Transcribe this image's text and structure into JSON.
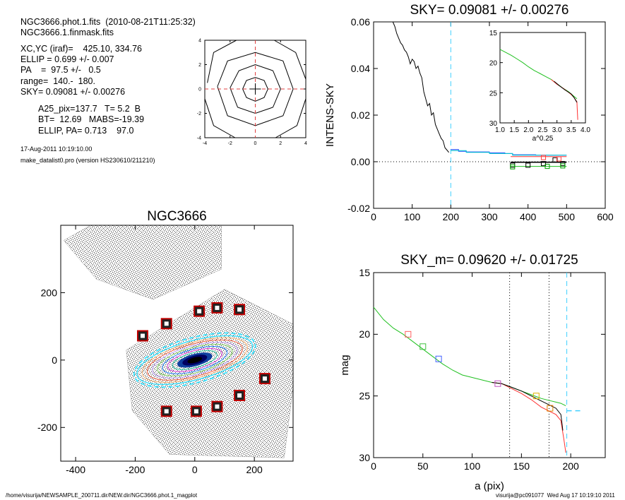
{
  "header": {
    "line1": "NGC3666.phot.1.fits  (2010-08-21T11:25:32)",
    "line2": "NGC3666.1.finmask.fits",
    "xcyc": "XC,YC (iraf)=    425.10, 334.76",
    "ellip": "ELLIP = 0.699 +/- 0.007",
    "pa": "PA    =  97.5 +/-   0.5",
    "range": "range=  140.-  180.",
    "sky": "SKY= 0.09081 +/- 0.00276",
    "a25": "A25_pix=137.7   T= 5.2  B",
    "bt": "BT=  12.69   MABS=-19.39",
    "ellip_pa": "ELLIP, PA= 0.713    97.0",
    "date": "17-Aug-2011 10:19:10.00",
    "prog": "make_datalist0.pro (version HS230610/211210)"
  },
  "footer": {
    "path": "/home/visurija/NEWSAMPLE_200711.dir/NEW.dir/NGC3666.phot.1_magplot",
    "user": "visurija@pc091077  Wed Aug 17 10:19:10 2011"
  },
  "chart_data": [
    {
      "type": "contour",
      "title": "",
      "xlim": [
        -4,
        4
      ],
      "ylim": [
        -4,
        4
      ],
      "xticks": [
        "-4",
        "-2",
        "0",
        "2",
        "4"
      ],
      "yticks": [
        "-4",
        "-2",
        "0",
        "2",
        "4"
      ],
      "contours": [
        {
          "points": [
            [
              -1.0,
              0
            ],
            [
              -0.7,
              0.7
            ],
            [
              0,
              0.95
            ],
            [
              0.7,
              0.7
            ],
            [
              1.0,
              0
            ],
            [
              0.7,
              -0.7
            ],
            [
              0,
              -1.0
            ],
            [
              -0.7,
              -0.7
            ]
          ]
        },
        {
          "points": [
            [
              -2.0,
              0.1
            ],
            [
              -1.3,
              1.5
            ],
            [
              0,
              2.0
            ],
            [
              1.4,
              1.5
            ],
            [
              2.0,
              0
            ],
            [
              1.4,
              -1.5
            ],
            [
              0,
              -2.0
            ],
            [
              -1.4,
              -1.5
            ]
          ]
        },
        {
          "points": [
            [
              -3.0,
              0.2
            ],
            [
              -2.2,
              2.3
            ],
            [
              0,
              3.0
            ],
            [
              2.2,
              2.3
            ],
            [
              3.0,
              0
            ],
            [
              2.2,
              -2.2
            ],
            [
              0,
              -3.0
            ],
            [
              -2.2,
              -2.2
            ]
          ]
        },
        {
          "points": [
            [
              -3.8,
              0.5
            ],
            [
              -3.3,
              3.0
            ],
            [
              -1.5,
              4.0
            ]
          ]
        },
        {
          "points": [
            [
              1.5,
              4.0
            ],
            [
              3.2,
              3.0
            ],
            [
              4.0,
              0.8
            ]
          ]
        },
        {
          "points": [
            [
              4.0,
              -0.8
            ],
            [
              3.3,
              -3.0
            ],
            [
              1.6,
              -4.0
            ]
          ]
        },
        {
          "points": [
            [
              -1.6,
              -4.0
            ],
            [
              -3.3,
              -3.0
            ],
            [
              -4.0,
              -0.8
            ]
          ]
        }
      ],
      "crosshair": [
        0,
        0
      ]
    },
    {
      "type": "line",
      "title": "SKY= 0.09081 +/- 0.00276",
      "xlabel": "",
      "ylabel": "INTENS-SKY",
      "xlim": [
        0,
        600
      ],
      "ylim": [
        -0.02,
        0.06
      ],
      "xticks": [
        "0",
        "100",
        "200",
        "300",
        "400",
        "500",
        "600"
      ],
      "yticks": [
        "-0.02",
        "0.00",
        "0.02",
        "0.04",
        "0.06"
      ],
      "vline": 200,
      "hline": 0,
      "series": [
        {
          "color": "#000000",
          "x": [
            50,
            55,
            60,
            65,
            70,
            75,
            80,
            85,
            90,
            95,
            100,
            105,
            110,
            115,
            120,
            125,
            130,
            135,
            140,
            145,
            150,
            155,
            160,
            165,
            170,
            175,
            180,
            185,
            190,
            195
          ],
          "y": [
            0.06,
            0.058,
            0.055,
            0.053,
            0.051,
            0.05,
            0.048,
            0.047,
            0.045,
            0.042,
            0.044,
            0.043,
            0.04,
            0.041,
            0.038,
            0.036,
            0.03,
            0.027,
            0.024,
            0.025,
            0.02,
            0.021,
            0.016,
            0.014,
            0.012,
            0.01,
            0.009,
            0.006,
            0.005,
            0.004
          ]
        },
        {
          "color": "#2040ff",
          "x": [
            200,
            220,
            220,
            240,
            240,
            300,
            300,
            340,
            340,
            360,
            360,
            420,
            420,
            500
          ],
          "y": [
            0.0052,
            0.0052,
            0.0045,
            0.0045,
            0.0042,
            0.0042,
            0.0038,
            0.0038,
            0.0035,
            0.0035,
            0.003,
            0.003,
            0.0028,
            0.0028
          ]
        },
        {
          "color": "#00cccc",
          "x": [
            200,
            240,
            240,
            300,
            300,
            360,
            360,
            500
          ],
          "y": [
            0.0048,
            0.0048,
            0.004,
            0.004,
            0.0035,
            0.0035,
            0.0028,
            0.0028
          ]
        },
        {
          "color": "#ff3030",
          "x": [
            355,
            500
          ],
          "y": [
            0.0022,
            0.0022
          ]
        },
        {
          "color": "#000000",
          "x": [
            355,
            500
          ],
          "y": [
            -0.0002,
            -0.0002
          ]
        },
        {
          "color": "#20c020",
          "x": [
            355,
            500
          ],
          "y": [
            -0.002,
            -0.002
          ]
        }
      ],
      "markers": [
        {
          "color": "#000000",
          "x": [
            360,
            400,
            440,
            470,
            490
          ],
          "y": [
            -0.0015,
            -0.0015,
            -0.0008,
            0.0008,
            -0.0008
          ]
        },
        {
          "color": "#ff4040",
          "x": [
            440,
            480
          ],
          "y": [
            0.0018,
            0.0012
          ]
        },
        {
          "color": "#00a000",
          "x": [
            360,
            450,
            490
          ],
          "y": [
            -0.0022,
            -0.002,
            -0.0018
          ]
        }
      ],
      "inset": {
        "xlabel": "a^0.25",
        "xlim": [
          1.0,
          4.0
        ],
        "ylim": [
          15,
          30
        ],
        "xticks": [
          "1.0",
          "1.5",
          "2.0",
          "2.5",
          "3.0",
          "3.5",
          "4.0"
        ],
        "yticks": [
          "15",
          "20",
          "25",
          "30"
        ],
        "series": [
          {
            "color": "#20c020",
            "x": [
              1.0,
              1.2,
              1.4,
              1.6,
              1.8,
              2.0,
              2.2,
              2.4,
              2.6,
              2.8,
              3.0,
              3.2,
              3.4,
              3.5,
              3.6,
              3.7
            ],
            "y": [
              17.8,
              18.3,
              18.8,
              19.4,
              20.0,
              20.7,
              21.3,
              21.8,
              22.3,
              22.8,
              23.5,
              24.2,
              24.8,
              25.2,
              25.6,
              26.0
            ]
          },
          {
            "color": "#ff3030",
            "x": [
              2.8,
              3.0,
              3.2,
              3.4,
              3.5,
              3.6,
              3.7,
              3.73
            ],
            "y": [
              22.8,
              23.6,
              24.2,
              24.9,
              25.3,
              25.8,
              26.5,
              29.5
            ]
          },
          {
            "color": "#000000",
            "x": [
              2.9,
              3.1,
              3.3,
              3.5,
              3.6,
              3.7
            ],
            "y": [
              23.1,
              23.9,
              24.6,
              25.2,
              25.8,
              26.6
            ]
          }
        ]
      }
    },
    {
      "type": "scatter",
      "title": "NGC3666",
      "xlim": [
        -450,
        330
      ],
      "ylim": [
        -300,
        400
      ],
      "xticks": [
        "-400",
        "-200",
        "0",
        "200"
      ],
      "yticks": [
        "-200",
        "0",
        "200"
      ],
      "markers": [
        [
          -175,
          72
        ],
        [
          -95,
          108
        ],
        [
          15,
          145
        ],
        [
          75,
          155
        ],
        [
          150,
          150
        ],
        [
          235,
          -55
        ],
        [
          150,
          -105
        ],
        [
          75,
          -138
        ],
        [
          5,
          -152
        ],
        [
          -95,
          -152
        ]
      ],
      "galaxy": {
        "center": [
          0,
          0
        ],
        "a": 200,
        "b": 58,
        "pa_deg": -15
      }
    },
    {
      "type": "line",
      "title": "SKY_m=  0.09620 +/- 0.01725",
      "xlabel": "a (pix)",
      "ylabel": "mag",
      "xlim": [
        0,
        235
      ],
      "ylim": [
        15,
        30
      ],
      "xticks": [
        "0",
        "50",
        "100",
        "150",
        "200"
      ],
      "yticks": [
        "15",
        "20",
        "25",
        "30"
      ],
      "vlines_dotted": [
        138,
        178
      ],
      "vline_dashed": 196,
      "hline_dashed": {
        "x": [
          196,
          212
        ],
        "y": 26.2
      },
      "series": [
        {
          "color": "#20c020",
          "x": [
            0,
            10,
            20,
            30,
            40,
            50,
            60,
            70,
            80,
            90,
            100,
            110,
            120,
            130,
            140,
            150,
            160,
            170,
            180,
            185,
            190,
            195
          ],
          "y": [
            17.8,
            18.8,
            19.5,
            20.0,
            20.6,
            21.2,
            21.8,
            22.4,
            22.9,
            23.3,
            23.5,
            23.7,
            23.9,
            24.0,
            24.3,
            24.6,
            24.9,
            25.2,
            25.4,
            25.5,
            25.6,
            25.8
          ]
        },
        {
          "color": "#ff3030",
          "x": [
            120,
            130,
            140,
            150,
            160,
            170,
            180,
            185,
            190,
            193,
            195
          ],
          "y": [
            23.9,
            24.0,
            24.4,
            24.8,
            25.3,
            25.9,
            26.3,
            26.5,
            27.0,
            28.5,
            29.6
          ]
        },
        {
          "color": "#000000",
          "x": [
            120,
            130,
            140,
            150,
            160,
            170,
            180,
            185,
            190,
            192
          ],
          "y": [
            23.9,
            24.0,
            24.3,
            24.6,
            25.0,
            25.4,
            25.8,
            26.0,
            26.5,
            27.8
          ]
        }
      ],
      "markers": [
        {
          "color": "#ff6060",
          "x": 35,
          "y": 20.0
        },
        {
          "color": "#40c040",
          "x": 50,
          "y": 21.0
        },
        {
          "color": "#4060ff",
          "x": 66,
          "y": 22.0
        },
        {
          "color": "#c050c0",
          "x": 126,
          "y": 24.0
        },
        {
          "color": "#e0b000",
          "x": 165,
          "y": 25.0
        },
        {
          "color": "#e08000",
          "x": 179,
          "y": 26.0
        }
      ]
    }
  ]
}
